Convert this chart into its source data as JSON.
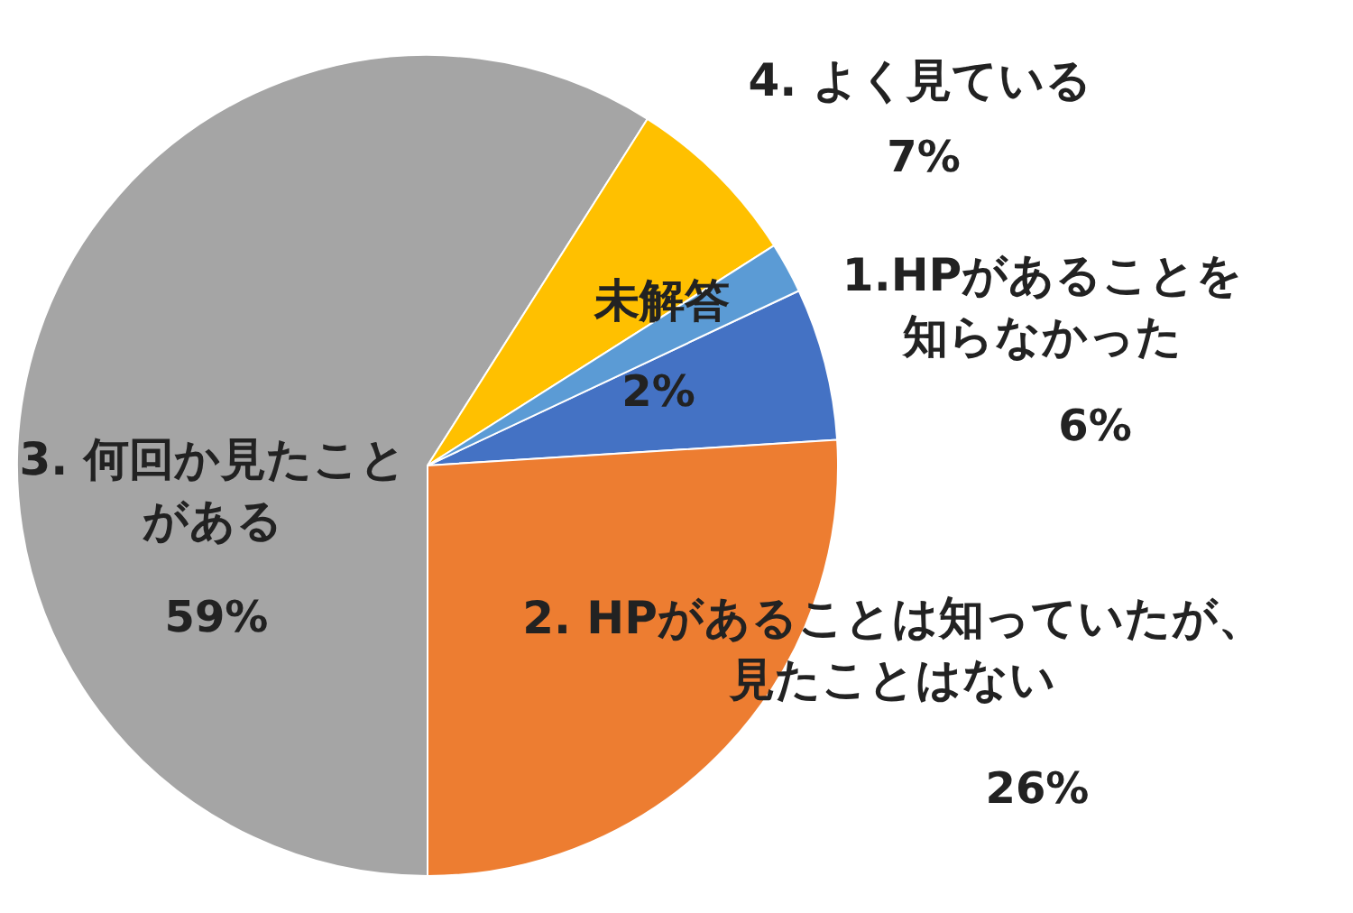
{
  "chart_data": {
    "type": "pie",
    "categories": [
      "1.HPがあることを知らなかった",
      "2. HPがあることは知っていたが、見たことはない",
      "3. 何回か見たことがある",
      "4. よく見ている",
      "未解答"
    ],
    "values": [
      6,
      26,
      59,
      7,
      2
    ],
    "colors": [
      "#4472c4",
      "#ed7d31",
      "#a5a5a5",
      "#ffc000",
      "#5b9bd5"
    ],
    "value_labels": [
      "6%",
      "26%",
      "59%",
      "7%",
      "2%"
    ],
    "legend": false
  }
}
